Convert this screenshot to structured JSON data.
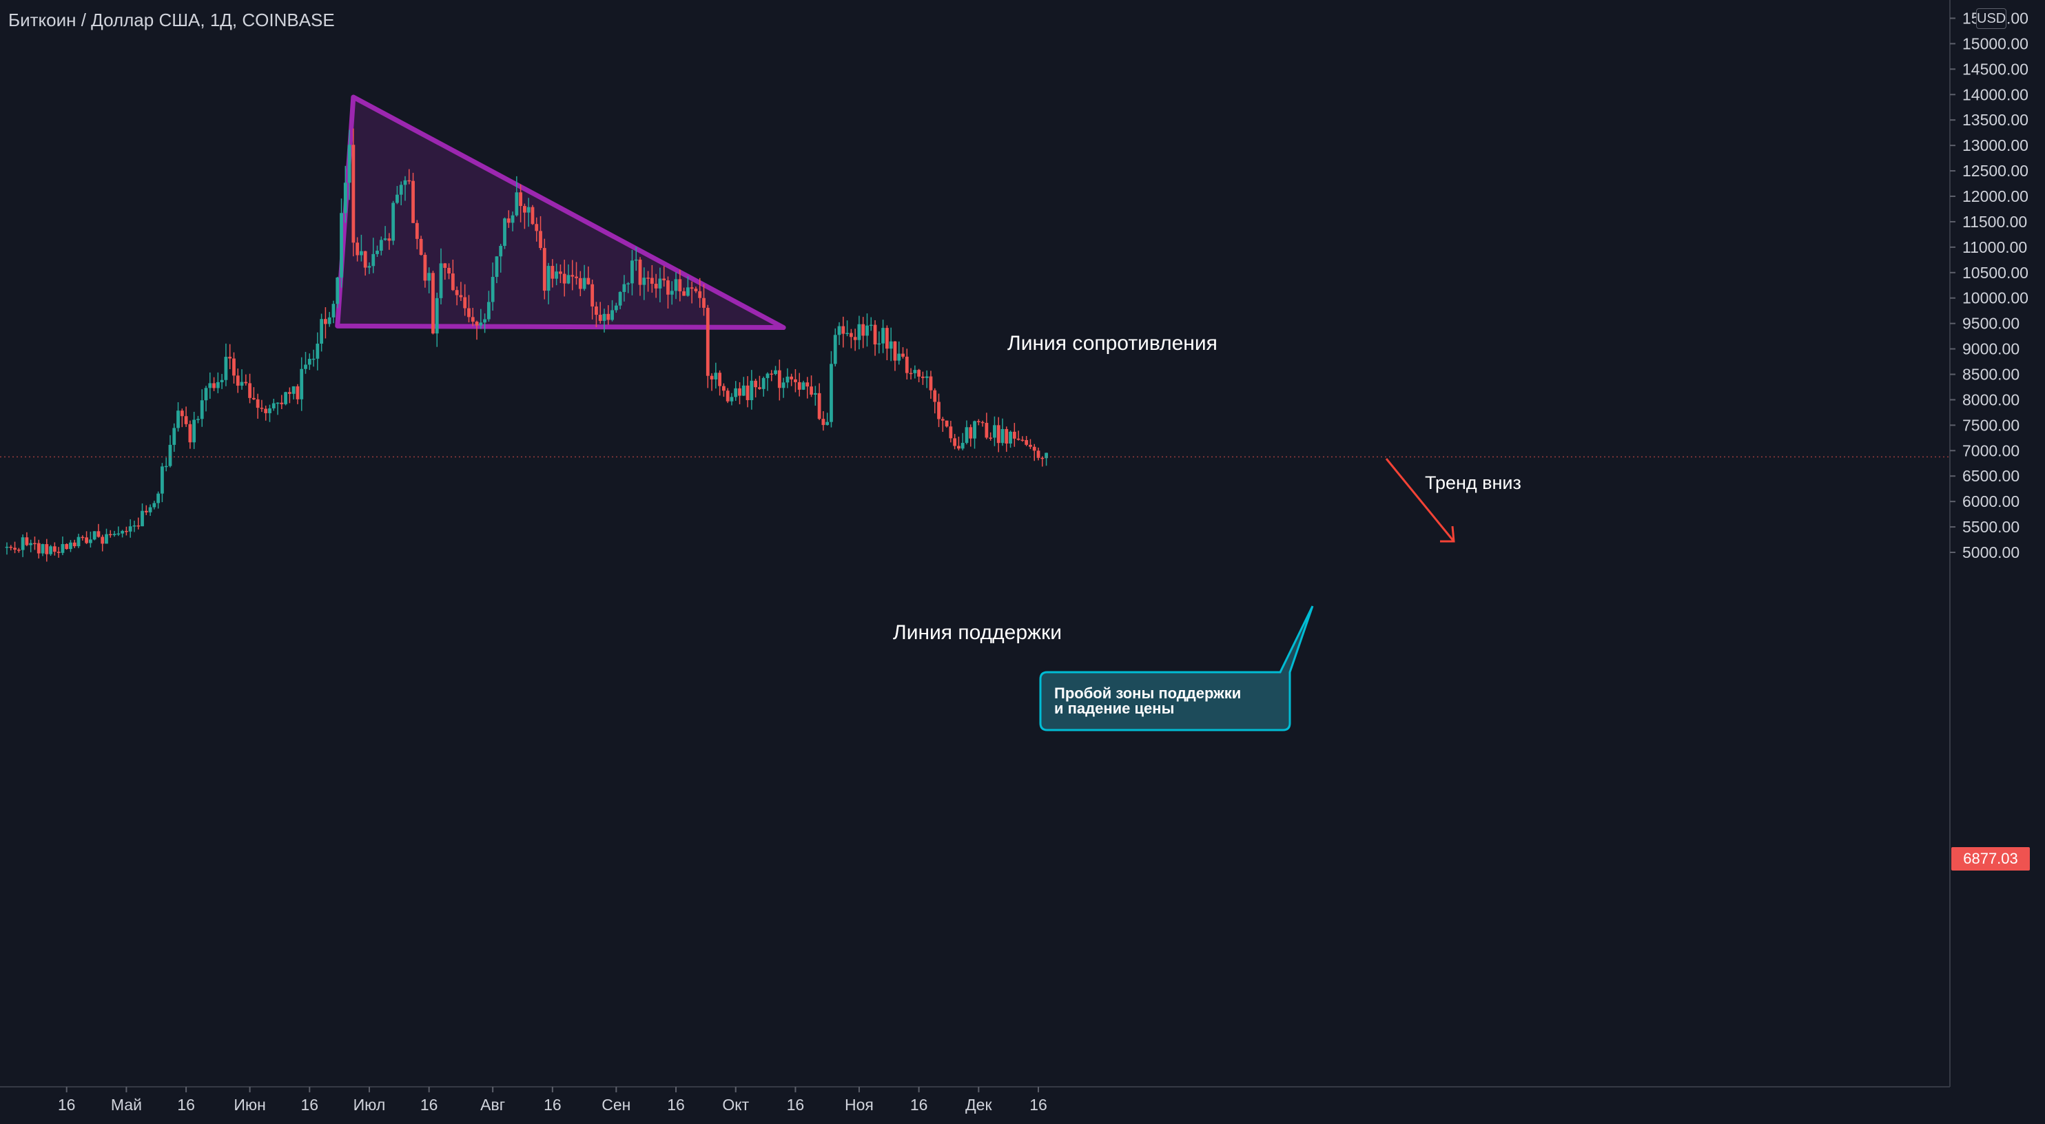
{
  "header": {
    "symbol_title": "Биткоин / Доллар США, 1Д, COINBASE",
    "currency_badge": "USD"
  },
  "colors": {
    "background": "#131722",
    "up": "#26a69a",
    "down": "#ef5350",
    "pattern": "#9c27b0",
    "arrow": "#f44336",
    "callout": "#1d4b5a",
    "callout_border": "#00bcd4",
    "text": "#d1d4dc"
  },
  "last_price": {
    "value": 6877.03,
    "label": "6877.03"
  },
  "chart_data": {
    "type": "candlestick",
    "title": "Биткоин / Доллар США, 1Д, COINBASE",
    "ylim": [
      4600,
      15600
    ],
    "y_ticks": [
      5000,
      5500,
      6000,
      6500,
      7000,
      7500,
      8000,
      8500,
      9000,
      9500,
      10000,
      10500,
      11000,
      11500,
      12000,
      12500,
      13000,
      13500,
      14000,
      14500,
      15000,
      15500
    ],
    "y_tick_labels": [
      "5000.00",
      "5500.00",
      "6000.00",
      "6500.00",
      "7000.00",
      "7500.00",
      "8000.00",
      "8500.00",
      "9000.00",
      "9500.00",
      "10000.00",
      "10500.00",
      "11000.00",
      "11500.00",
      "12000.00",
      "12500.00",
      "13000.00",
      "13500.00",
      "14000.00",
      "14500.00",
      "15000.00",
      "15500.00"
    ],
    "x_start": "2019-04-01",
    "x_end": "2019-12-31",
    "x_ticks": [
      {
        "date": "2019-04-16",
        "label": "16"
      },
      {
        "date": "2019-05-01",
        "label": "Май"
      },
      {
        "date": "2019-05-16",
        "label": "16"
      },
      {
        "date": "2019-06-01",
        "label": "Июн"
      },
      {
        "date": "2019-06-16",
        "label": "16"
      },
      {
        "date": "2019-07-01",
        "label": "Июл"
      },
      {
        "date": "2019-07-16",
        "label": "16"
      },
      {
        "date": "2019-08-01",
        "label": "Авг"
      },
      {
        "date": "2019-08-16",
        "label": "16"
      },
      {
        "date": "2019-09-01",
        "label": "Сен"
      },
      {
        "date": "2019-09-16",
        "label": "16"
      },
      {
        "date": "2019-10-01",
        "label": "Окт"
      },
      {
        "date": "2019-10-16",
        "label": "16"
      },
      {
        "date": "2019-11-01",
        "label": "Ноя"
      },
      {
        "date": "2019-11-16",
        "label": "16"
      },
      {
        "date": "2019-12-01",
        "label": "Дек"
      },
      {
        "date": "2019-12-16",
        "label": "16"
      }
    ],
    "keypoints": [
      [
        "2019-04-01",
        5050
      ],
      [
        "2019-04-05",
        5200
      ],
      [
        "2019-04-12",
        5000
      ],
      [
        "2019-04-20",
        5280
      ],
      [
        "2019-04-30",
        5300
      ],
      [
        "2019-05-08",
        5900
      ],
      [
        "2019-05-14",
        7800
      ],
      [
        "2019-05-17",
        7200
      ],
      [
        "2019-05-20",
        8100
      ],
      [
        "2019-05-26",
        8700
      ],
      [
        "2019-05-31",
        8300
      ],
      [
        "2019-06-06",
        7700
      ],
      [
        "2019-06-13",
        8200
      ],
      [
        "2019-06-17",
        9000
      ],
      [
        "2019-06-22",
        9900
      ],
      [
        "2019-06-26",
        12900
      ],
      [
        "2019-06-27",
        11000
      ],
      [
        "2019-07-02",
        10600
      ],
      [
        "2019-07-06",
        11300
      ],
      [
        "2019-07-10",
        12600
      ],
      [
        "2019-07-12",
        11500
      ],
      [
        "2019-07-16",
        10300
      ],
      [
        "2019-07-17",
        9500
      ],
      [
        "2019-07-19",
        10600
      ],
      [
        "2019-07-24",
        9800
      ],
      [
        "2019-07-29",
        9500
      ],
      [
        "2019-08-01",
        10400
      ],
      [
        "2019-08-06",
        11900
      ],
      [
        "2019-08-10",
        11900
      ],
      [
        "2019-08-14",
        10400
      ],
      [
        "2019-08-19",
        10300
      ],
      [
        "2019-08-21",
        10600
      ],
      [
        "2019-08-28",
        9750
      ],
      [
        "2019-08-30",
        9500
      ],
      [
        "2019-09-03",
        10500
      ],
      [
        "2019-09-06",
        10500
      ],
      [
        "2019-09-12",
        10200
      ],
      [
        "2019-09-17",
        10200
      ],
      [
        "2019-09-20",
        10100
      ],
      [
        "2019-09-23",
        9800
      ],
      [
        "2019-09-24",
        8550
      ],
      [
        "2019-09-28",
        8100
      ],
      [
        "2019-10-05",
        8200
      ],
      [
        "2019-10-09",
        8400
      ],
      [
        "2019-10-14",
        8350
      ],
      [
        "2019-10-20",
        8100
      ],
      [
        "2019-10-24",
        7450
      ],
      [
        "2019-10-25",
        8650
      ],
      [
        "2019-10-26",
        9300
      ],
      [
        "2019-10-29",
        9300
      ],
      [
        "2019-11-04",
        9300
      ],
      [
        "2019-11-08",
        9150
      ],
      [
        "2019-11-12",
        8750
      ],
      [
        "2019-11-18",
        8500
      ],
      [
        "2019-11-21",
        7650
      ],
      [
        "2019-11-25",
        7100
      ],
      [
        "2019-11-30",
        7500
      ],
      [
        "2019-12-05",
        7350
      ],
      [
        "2019-12-10",
        7250
      ],
      [
        "2019-12-14",
        7100
      ],
      [
        "2019-12-18",
        6900
      ]
    ],
    "annotations": {
      "resistance_label": "Линия сопротивления",
      "support_label": "Линия поддержки",
      "trend_label": "Тренд вниз",
      "callout_line1": "Пробой зоны поддержки",
      "callout_line2": "и падение цены"
    },
    "triangle": [
      [
        "2019-06-23",
        9450
      ],
      [
        "2019-06-27",
        13950
      ],
      [
        "2019-10-13",
        9420
      ]
    ],
    "legend": "none",
    "grid": false
  }
}
